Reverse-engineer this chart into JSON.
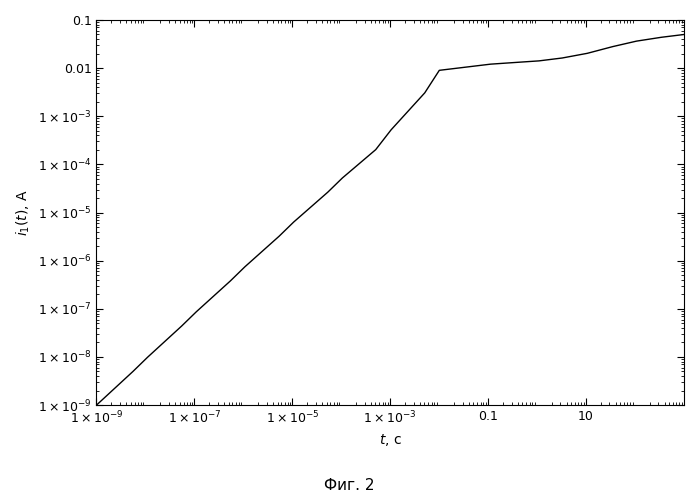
{
  "xlabel": "t, с",
  "ylabel": "i_1(t), А",
  "caption": "Фиг. 2",
  "xmin": 1e-09,
  "xmax": 1000.0,
  "ymin": 1e-09,
  "ymax": 0.1,
  "line_color": "#000000",
  "background_color": "#ffffff",
  "fig_width": 6.99,
  "fig_height": 4.98,
  "dpi": 100,
  "x_major_ticks": [
    1e-09,
    1e-07,
    1e-05,
    0.001,
    0.1,
    10
  ],
  "y_major_ticks": [
    1e-09,
    1e-08,
    1e-07,
    1e-06,
    1e-05,
    0.0001,
    0.001,
    0.01,
    0.1
  ],
  "t_data": [
    1e-09,
    5e-09,
    1e-08,
    5e-08,
    1e-07,
    5e-07,
    1e-06,
    5e-06,
    1e-05,
    5e-05,
    0.0001,
    0.0005,
    0.001,
    0.005,
    0.01,
    0.05,
    0.1,
    0.3,
    1,
    3,
    10,
    30,
    100,
    300,
    1000
  ],
  "i_data": [
    1e-09,
    4.5e-09,
    9e-09,
    4e-08,
    8e-08,
    3.5e-07,
    7e-07,
    3e-06,
    6e-06,
    2.5e-05,
    5e-05,
    0.0002,
    0.0005,
    0.003,
    0.009,
    0.011,
    0.012,
    0.013,
    0.014,
    0.016,
    0.02,
    0.027,
    0.036,
    0.043,
    0.05
  ]
}
